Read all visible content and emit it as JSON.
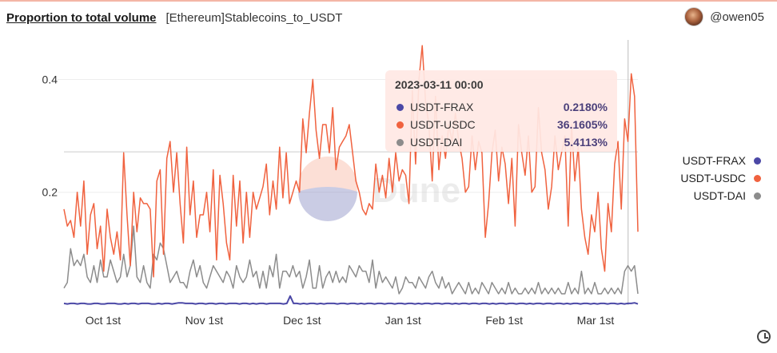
{
  "header": {
    "title": "Proportion to total volume",
    "subtitle": "[Ethereum]Stablecoins_to_USDT",
    "author": "@owen05"
  },
  "watermark": "Dune",
  "tooltip": {
    "title": "2023-03-11 00:00",
    "rows": [
      {
        "name": "USDT-FRAX",
        "value": "0.2180%",
        "color": "#4b48a6"
      },
      {
        "name": "USDT-USDC",
        "value": "36.1605%",
        "color": "#f0623f"
      },
      {
        "name": "USDT-DAI",
        "value": "5.4113%",
        "color": "#8c8c8c"
      }
    ]
  },
  "legend": [
    {
      "name": "USDT-FRAX",
      "color": "#4b48a6"
    },
    {
      "name": "USDT-USDC",
      "color": "#f0623f"
    },
    {
      "name": "USDT-DAI",
      "color": "#8c8c8c"
    }
  ],
  "chart_data": {
    "type": "line",
    "title": "Proportion to total volume",
    "x_start": "2022-09-19",
    "x_end": "2023-03-14",
    "x_tick_labels": [
      {
        "label": "Oct 1st",
        "date": "2022-10-01"
      },
      {
        "label": "Nov 1st",
        "date": "2022-11-01"
      },
      {
        "label": "Dec 1st",
        "date": "2022-12-01"
      },
      {
        "label": "Jan 1st",
        "date": "2023-01-01"
      },
      {
        "label": "Feb 1st",
        "date": "2023-02-01"
      },
      {
        "label": "Mar 1st",
        "date": "2023-03-01"
      }
    ],
    "y_ticks": [
      0.2,
      0.4
    ],
    "ylim": [
      0,
      0.47
    ],
    "grid": "horizontal",
    "legend_position": "right",
    "hover_date": "2023-03-11",
    "series": [
      {
        "name": "USDT-FRAX",
        "color": "#4b48a6",
        "values": [
          0.003,
          0.002,
          0.003,
          0.003,
          0.002,
          0.003,
          0.003,
          0.002,
          0.002,
          0.003,
          0.003,
          0.002,
          0.002,
          0.003,
          0.003,
          0.003,
          0.002,
          0.002,
          0.003,
          0.002,
          0.003,
          0.003,
          0.002,
          0.003,
          0.003,
          0.003,
          0.002,
          0.002,
          0.003,
          0.002,
          0.003,
          0.003,
          0.002,
          0.003,
          0.004,
          0.004,
          0.003,
          0.003,
          0.003,
          0.002,
          0.003,
          0.003,
          0.002,
          0.003,
          0.003,
          0.002,
          0.003,
          0.003,
          0.002,
          0.003,
          0.003,
          0.003,
          0.002,
          0.003,
          0.003,
          0.002,
          0.003,
          0.002,
          0.003,
          0.003,
          0.002,
          0.003,
          0.003,
          0.003,
          0.003,
          0.002,
          0.003,
          0.016,
          0.003,
          0.003,
          0.002,
          0.003,
          0.002,
          0.003,
          0.003,
          0.002,
          0.003,
          0.002,
          0.003,
          0.003,
          0.003,
          0.002,
          0.003,
          0.003,
          0.002,
          0.003,
          0.003,
          0.002,
          0.003,
          0.002,
          0.003,
          0.003,
          0.002,
          0.003,
          0.003,
          0.002,
          0.003,
          0.003,
          0.002,
          0.003,
          0.003,
          0.002,
          0.003,
          0.003,
          0.002,
          0.003,
          0.002,
          0.003,
          0.003,
          0.002,
          0.003,
          0.003,
          0.002,
          0.003,
          0.003,
          0.002,
          0.003,
          0.002,
          0.003,
          0.003,
          0.002,
          0.003,
          0.003,
          0.002,
          0.003,
          0.003,
          0.002,
          0.003,
          0.002,
          0.003,
          0.003,
          0.002,
          0.003,
          0.003,
          0.002,
          0.003,
          0.003,
          0.002,
          0.003,
          0.002,
          0.003,
          0.003,
          0.002,
          0.003,
          0.003,
          0.002,
          0.003,
          0.003,
          0.002,
          0.003,
          0.002,
          0.003,
          0.003,
          0.002,
          0.003,
          0.003,
          0.002,
          0.003,
          0.002,
          0.003,
          0.003,
          0.002,
          0.003,
          0.003,
          0.002,
          0.003,
          0.002,
          0.003,
          0.003,
          0.004,
          0.002
        ]
      },
      {
        "name": "USDT-USDC",
        "color": "#f0623f",
        "values": [
          0.17,
          0.14,
          0.15,
          0.12,
          0.2,
          0.14,
          0.22,
          0.09,
          0.16,
          0.18,
          0.1,
          0.14,
          0.06,
          0.17,
          0.12,
          0.09,
          0.13,
          0.08,
          0.27,
          0.16,
          0.07,
          0.2,
          0.13,
          0.19,
          0.18,
          0.18,
          0.17,
          0.05,
          0.22,
          0.24,
          0.09,
          0.26,
          0.29,
          0.2,
          0.27,
          0.18,
          0.11,
          0.28,
          0.16,
          0.22,
          0.12,
          0.16,
          0.16,
          0.2,
          0.13,
          0.24,
          0.08,
          0.23,
          0.18,
          0.11,
          0.08,
          0.23,
          0.14,
          0.22,
          0.11,
          0.2,
          0.12,
          0.2,
          0.17,
          0.19,
          0.21,
          0.25,
          0.16,
          0.22,
          0.17,
          0.28,
          0.19,
          0.27,
          0.18,
          0.2,
          0.22,
          0.2,
          0.33,
          0.27,
          0.34,
          0.4,
          0.31,
          0.26,
          0.32,
          0.32,
          0.27,
          0.35,
          0.24,
          0.28,
          0.29,
          0.3,
          0.32,
          0.27,
          0.22,
          0.2,
          0.17,
          0.16,
          0.18,
          0.17,
          0.25,
          0.2,
          0.23,
          0.19,
          0.26,
          0.2,
          0.27,
          0.22,
          0.24,
          0.23,
          0.18,
          0.38,
          0.25,
          0.4,
          0.46,
          0.36,
          0.32,
          0.22,
          0.37,
          0.24,
          0.3,
          0.26,
          0.32,
          0.29,
          0.34,
          0.29,
          0.26,
          0.2,
          0.21,
          0.3,
          0.24,
          0.29,
          0.27,
          0.12,
          0.18,
          0.27,
          0.31,
          0.22,
          0.28,
          0.25,
          0.18,
          0.26,
          0.14,
          0.32,
          0.27,
          0.23,
          0.3,
          0.2,
          0.21,
          0.35,
          0.27,
          0.24,
          0.17,
          0.21,
          0.3,
          0.24,
          0.27,
          0.3,
          0.14,
          0.32,
          0.22,
          0.28,
          0.17,
          0.12,
          0.09,
          0.16,
          0.13,
          0.2,
          0.1,
          0.06,
          0.18,
          0.13,
          0.25,
          0.29,
          0.17,
          0.33,
          0.29,
          0.41,
          0.37,
          0.13
        ]
      },
      {
        "name": "USDT-DAI",
        "color": "#8c8c8c",
        "values": [
          0.03,
          0.04,
          0.1,
          0.07,
          0.08,
          0.07,
          0.09,
          0.05,
          0.04,
          0.07,
          0.04,
          0.08,
          0.05,
          0.05,
          0.08,
          0.06,
          0.04,
          0.05,
          0.09,
          0.05,
          0.07,
          0.14,
          0.05,
          0.04,
          0.07,
          0.04,
          0.03,
          0.09,
          0.08,
          0.11,
          0.1,
          0.07,
          0.04,
          0.05,
          0.06,
          0.04,
          0.04,
          0.03,
          0.06,
          0.08,
          0.05,
          0.07,
          0.04,
          0.03,
          0.05,
          0.07,
          0.06,
          0.05,
          0.04,
          0.06,
          0.05,
          0.03,
          0.07,
          0.05,
          0.04,
          0.05,
          0.08,
          0.05,
          0.06,
          0.03,
          0.06,
          0.03,
          0.07,
          0.05,
          0.09,
          0.03,
          0.06,
          0.06,
          0.05,
          0.07,
          0.05,
          0.06,
          0.03,
          0.05,
          0.08,
          0.03,
          0.03,
          0.07,
          0.03,
          0.05,
          0.06,
          0.04,
          0.06,
          0.04,
          0.05,
          0.04,
          0.07,
          0.06,
          0.05,
          0.07,
          0.06,
          0.06,
          0.04,
          0.08,
          0.03,
          0.06,
          0.04,
          0.05,
          0.04,
          0.03,
          0.05,
          0.02,
          0.03,
          0.05,
          0.04,
          0.04,
          0.03,
          0.05,
          0.04,
          0.03,
          0.05,
          0.06,
          0.04,
          0.03,
          0.05,
          0.03,
          0.04,
          0.02,
          0.03,
          0.04,
          0.03,
          0.02,
          0.04,
          0.02,
          0.03,
          0.02,
          0.04,
          0.03,
          0.02,
          0.04,
          0.03,
          0.02,
          0.03,
          0.02,
          0.04,
          0.02,
          0.03,
          0.02,
          0.02,
          0.03,
          0.02,
          0.03,
          0.02,
          0.04,
          0.02,
          0.03,
          0.02,
          0.03,
          0.02,
          0.03,
          0.02,
          0.02,
          0.04,
          0.02,
          0.03,
          0.02,
          0.06,
          0.02,
          0.03,
          0.02,
          0.04,
          0.02,
          0.02,
          0.03,
          0.02,
          0.03,
          0.02,
          0.03,
          0.02,
          0.06,
          0.07,
          0.06,
          0.07,
          0.02
        ]
      }
    ]
  }
}
